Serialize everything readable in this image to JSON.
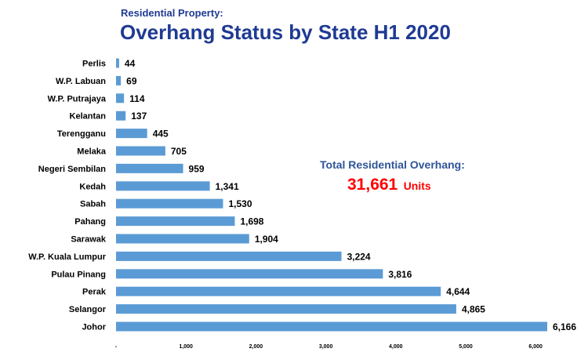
{
  "header": {
    "subtitle": "Residential Property:",
    "title": "Overhang Status by State H1 2020"
  },
  "total": {
    "label": "Total Residential Overhang:",
    "value": "31,661",
    "unit": "Units"
  },
  "colors": {
    "bar": "#5b9bd5",
    "title": "#1f3a93",
    "total_label": "#2e5597",
    "total_value": "#ff0000"
  },
  "chart_data": {
    "type": "bar",
    "orientation": "horizontal",
    "categories": [
      "Perlis",
      "W.P.  Labuan",
      "W.P.  Putrajaya",
      "Kelantan",
      "Terengganu",
      "Melaka",
      "Negeri Sembilan",
      "Kedah",
      "Sabah",
      "Pahang",
      "Sarawak",
      "W.P. Kuala Lumpur",
      "Pulau Pinang",
      "Perak",
      "Selangor",
      "Johor"
    ],
    "values": [
      44,
      69,
      114,
      137,
      445,
      705,
      959,
      1341,
      1530,
      1698,
      1904,
      3224,
      3816,
      4644,
      4865,
      6166
    ],
    "value_labels": [
      "44",
      "69",
      "114",
      "137",
      "445",
      "705",
      "959",
      "1,341",
      "1,530",
      "1,698",
      "1,904",
      "3,224",
      "3,816",
      "4,644",
      "4,865",
      "6,166"
    ],
    "xticks": [
      0,
      1000,
      2000,
      3000,
      4000,
      5000,
      6000
    ],
    "xtick_labels": [
      "-",
      "1,000",
      "2,000",
      "3,000",
      "4,000",
      "5,000",
      "6,000"
    ],
    "xlim": [
      0,
      6166
    ],
    "grid": false,
    "legend": "none",
    "title": "Overhang Status by State H1 2020",
    "subtitle": "Residential Property:"
  }
}
